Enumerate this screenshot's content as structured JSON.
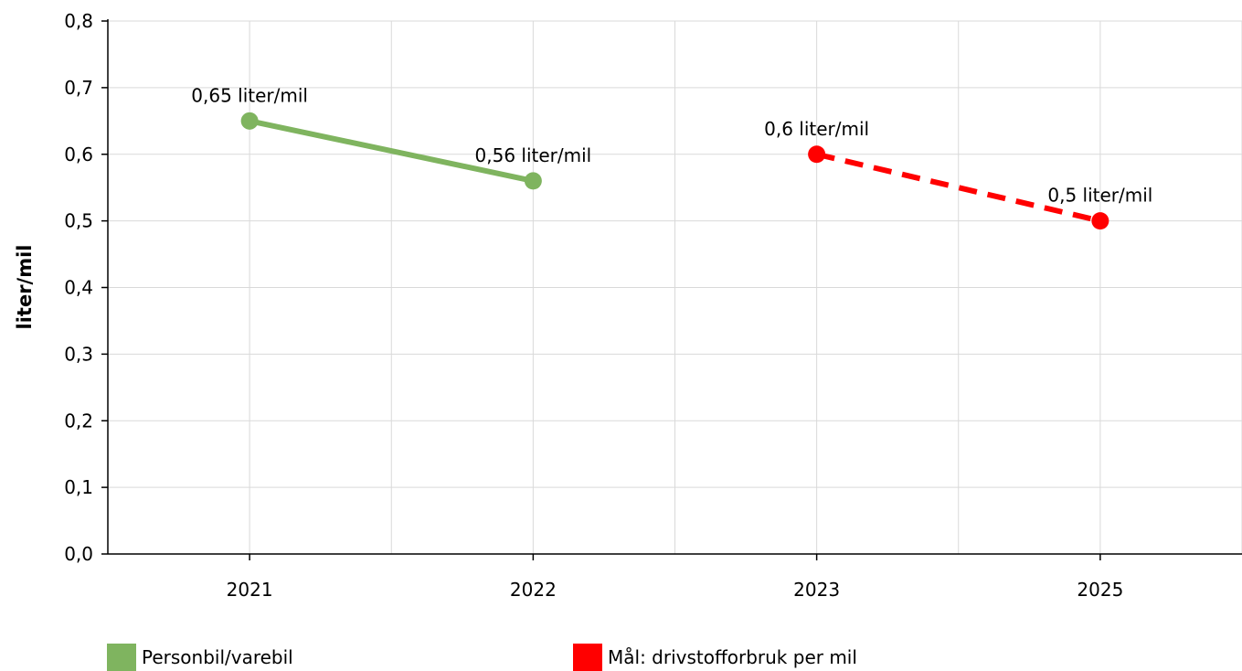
{
  "chart_data": {
    "type": "line",
    "categories": [
      "2021",
      "2022",
      "2023",
      "2025"
    ],
    "ylabel": "liter/mil",
    "xlabel": "",
    "ylim": [
      0,
      0.8
    ],
    "yticks": [
      "0,0",
      "0,1",
      "0,2",
      "0,3",
      "0,4",
      "0,5",
      "0,6",
      "0,7",
      "0,8"
    ],
    "grid": true,
    "legend_position": "bottom",
    "series": [
      {
        "name": "Personbil/varebil",
        "color": "#7fb45f",
        "line_style": "solid",
        "points": [
          {
            "x": "2021",
            "y": 0.65,
            "label": "0,65 liter/mil"
          },
          {
            "x": "2022",
            "y": 0.56,
            "label": "0,56 liter/mil"
          }
        ]
      },
      {
        "name": "Mål: drivstofforbruk per mil",
        "color": "#ff0000",
        "line_style": "dashed",
        "points": [
          {
            "x": "2023",
            "y": 0.6,
            "label": "0,6 liter/mil"
          },
          {
            "x": "2025",
            "y": 0.5,
            "label": "0,5 liter/mil"
          }
        ]
      }
    ]
  }
}
